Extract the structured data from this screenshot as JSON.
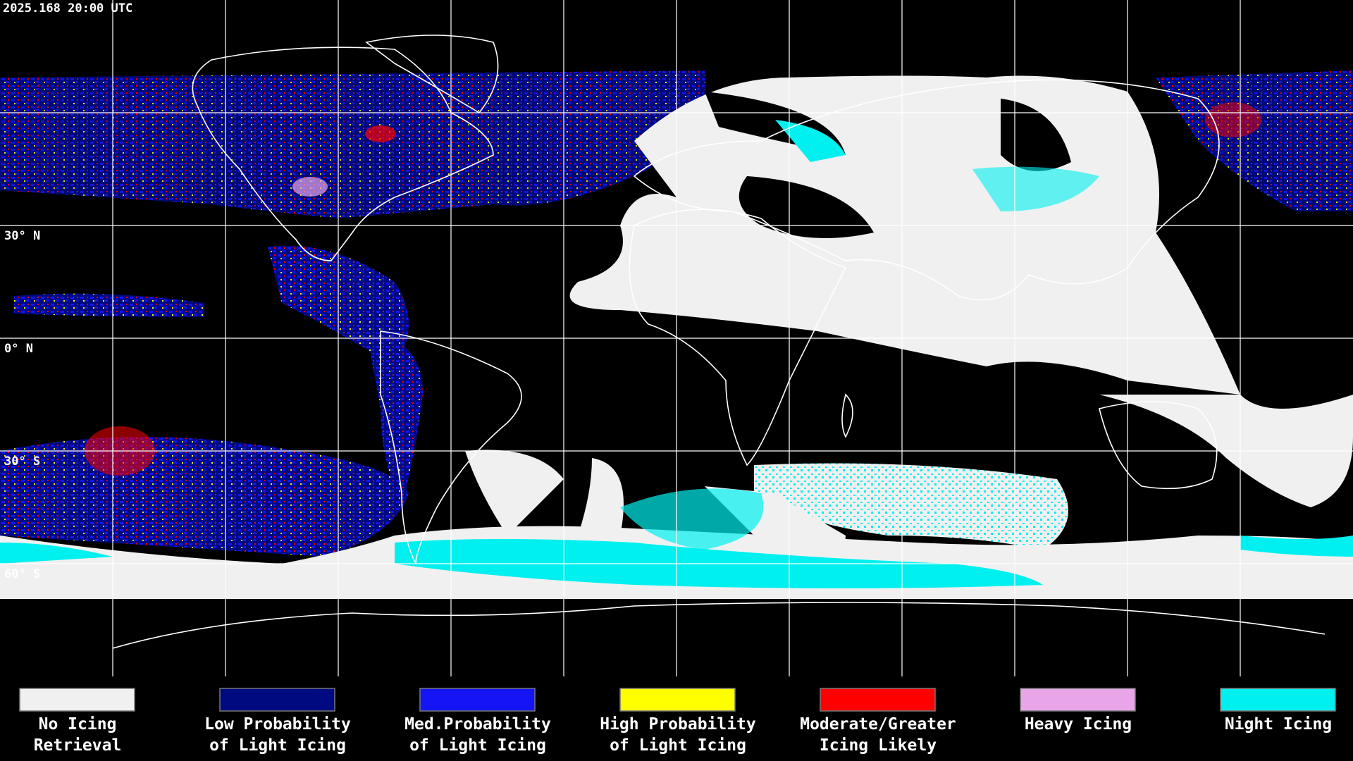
{
  "header": {
    "timestamp": "2025.168 20:00 UTC"
  },
  "map": {
    "latitude_labels": [
      "30° N",
      "0° N",
      "30° S",
      "60° S"
    ]
  },
  "legend": [
    {
      "label_lines": [
        "No Icing",
        "Retrieval"
      ],
      "color": "#f0f0f0"
    },
    {
      "label_lines": [
        "Low Probability",
        "of Light Icing"
      ],
      "color": "#000a80"
    },
    {
      "label_lines": [
        "Med.Probability",
        "of Light Icing"
      ],
      "color": "#1414f5"
    },
    {
      "label_lines": [
        "High Probability",
        "of Light Icing"
      ],
      "color": "#ffff00"
    },
    {
      "label_lines": [
        "Moderate/Greater",
        "Icing Likely"
      ],
      "color": "#ff0000"
    },
    {
      "label_lines": [
        "Heavy Icing"
      ],
      "color": "#e8a6e8"
    },
    {
      "label_lines": [
        "Night Icing"
      ],
      "color": "#00f0f0"
    }
  ]
}
